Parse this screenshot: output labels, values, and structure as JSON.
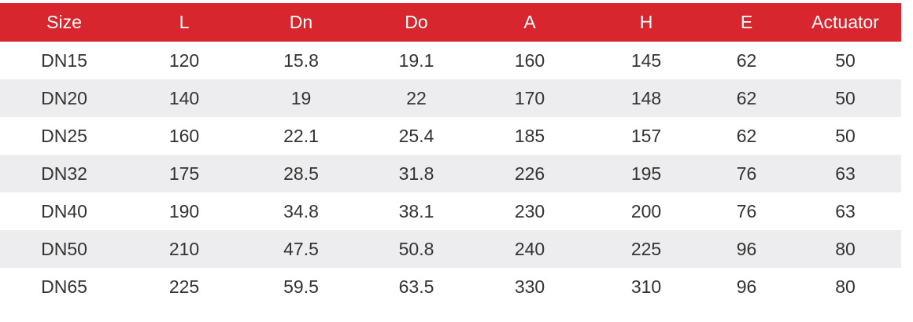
{
  "table": {
    "headers": [
      "Size",
      "L",
      "Dn",
      "Do",
      "A",
      "H",
      "E",
      "Actuator"
    ],
    "rows": [
      [
        "DN15",
        "120",
        "15.8",
        "19.1",
        "160",
        "145",
        "62",
        "50"
      ],
      [
        "DN20",
        "140",
        "19",
        "22",
        "170",
        "148",
        "62",
        "50"
      ],
      [
        "DN25",
        "160",
        "22.1",
        "25.4",
        "185",
        "157",
        "62",
        "50"
      ],
      [
        "DN32",
        "175",
        "28.5",
        "31.8",
        "226",
        "195",
        "76",
        "63"
      ],
      [
        "DN40",
        "190",
        "34.8",
        "38.1",
        "230",
        "200",
        "76",
        "63"
      ],
      [
        "DN50",
        "210",
        "47.5",
        "50.8",
        "240",
        "225",
        "96",
        "80"
      ],
      [
        "DN65",
        "225",
        "59.5",
        "63.5",
        "330",
        "310",
        "96",
        "80"
      ]
    ]
  },
  "colors": {
    "header_background": "#d7262e",
    "header_text": "#ffffff",
    "stripe_background": "#ededef",
    "body_text": "#333333"
  }
}
